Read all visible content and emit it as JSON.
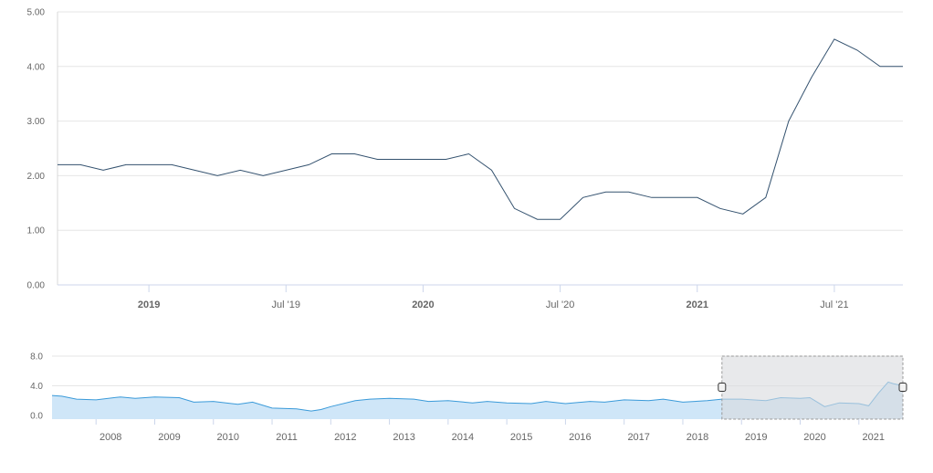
{
  "chart_data": [
    {
      "type": "line",
      "ylim": [
        0,
        5
      ],
      "y_ticks": [
        "0.00",
        "1.00",
        "2.00",
        "3.00",
        "4.00",
        "5.00"
      ],
      "x_range": [
        "2018-09",
        "2021-10"
      ],
      "x_ticks": [
        {
          "label": "2019",
          "x": "2019-01",
          "bold": true
        },
        {
          "label": "Jul '19",
          "x": "2019-07",
          "bold": false
        },
        {
          "label": "2020",
          "x": "2020-01",
          "bold": true
        },
        {
          "label": "Jul '20",
          "x": "2020-07",
          "bold": false
        },
        {
          "label": "2021",
          "x": "2021-01",
          "bold": true
        },
        {
          "label": "Jul '21",
          "x": "2021-07",
          "bold": false
        }
      ],
      "grid": true,
      "line_color": "#34526f",
      "points": [
        [
          "2018-09",
          2.2
        ],
        [
          "2018-10",
          2.2
        ],
        [
          "2018-11",
          2.1
        ],
        [
          "2018-12",
          2.2
        ],
        [
          "2019-01",
          2.2
        ],
        [
          "2019-02",
          2.2
        ],
        [
          "2019-03",
          2.1
        ],
        [
          "2019-04",
          2.0
        ],
        [
          "2019-05",
          2.1
        ],
        [
          "2019-06",
          2.0
        ],
        [
          "2019-07",
          2.1
        ],
        [
          "2019-08",
          2.2
        ],
        [
          "2019-09",
          2.4
        ],
        [
          "2019-10",
          2.4
        ],
        [
          "2019-11",
          2.3
        ],
        [
          "2019-12",
          2.3
        ],
        [
          "2020-01",
          2.3
        ],
        [
          "2020-02",
          2.3
        ],
        [
          "2020-03",
          2.4
        ],
        [
          "2020-04",
          2.1
        ],
        [
          "2020-05",
          1.4
        ],
        [
          "2020-06",
          1.2
        ],
        [
          "2020-07",
          1.2
        ],
        [
          "2020-08",
          1.6
        ],
        [
          "2020-09",
          1.7
        ],
        [
          "2020-10",
          1.7
        ],
        [
          "2020-11",
          1.6
        ],
        [
          "2020-12",
          1.6
        ],
        [
          "2021-01",
          1.6
        ],
        [
          "2021-02",
          1.4
        ],
        [
          "2021-03",
          1.3
        ],
        [
          "2021-04",
          1.6
        ],
        [
          "2021-05",
          3.0
        ],
        [
          "2021-06",
          3.8
        ],
        [
          "2021-07",
          4.5
        ],
        [
          "2021-08",
          4.3
        ],
        [
          "2021-09",
          4.0
        ],
        [
          "2021-10",
          4.0
        ]
      ]
    },
    {
      "type": "area",
      "role": "navigator",
      "ylim": [
        0,
        8
      ],
      "y_ticks": [
        "0.0",
        "4.0",
        "8.0"
      ],
      "x_range": [
        "2007-04",
        "2021-10"
      ],
      "x_ticks": [
        "2008",
        "2009",
        "2010",
        "2011",
        "2012",
        "2013",
        "2014",
        "2015",
        "2016",
        "2017",
        "2018",
        "2019",
        "2020",
        "2021"
      ],
      "selected_range": [
        "2018-09",
        "2021-10"
      ],
      "line_color": "#3a9ad9",
      "fill_color": "#cfe6f8",
      "points": [
        [
          "2007-04",
          2.7
        ],
        [
          "2007-06",
          2.6
        ],
        [
          "2007-09",
          2.2
        ],
        [
          "2008-01",
          2.1
        ],
        [
          "2008-06",
          2.5
        ],
        [
          "2008-09",
          2.3
        ],
        [
          "2009-01",
          2.5
        ],
        [
          "2009-06",
          2.4
        ],
        [
          "2009-09",
          1.8
        ],
        [
          "2010-01",
          1.9
        ],
        [
          "2010-06",
          1.5
        ],
        [
          "2010-09",
          1.8
        ],
        [
          "2011-01",
          1.0
        ],
        [
          "2011-06",
          0.9
        ],
        [
          "2011-09",
          0.6
        ],
        [
          "2011-11",
          0.8
        ],
        [
          "2012-01",
          1.2
        ],
        [
          "2012-06",
          2.0
        ],
        [
          "2012-09",
          2.2
        ],
        [
          "2013-01",
          2.3
        ],
        [
          "2013-06",
          2.2
        ],
        [
          "2013-09",
          1.9
        ],
        [
          "2014-01",
          2.0
        ],
        [
          "2014-06",
          1.7
        ],
        [
          "2014-09",
          1.9
        ],
        [
          "2015-01",
          1.7
        ],
        [
          "2015-06",
          1.6
        ],
        [
          "2015-09",
          1.9
        ],
        [
          "2016-01",
          1.6
        ],
        [
          "2016-06",
          1.9
        ],
        [
          "2016-09",
          1.8
        ],
        [
          "2017-01",
          2.1
        ],
        [
          "2017-06",
          2.0
        ],
        [
          "2017-09",
          2.2
        ],
        [
          "2018-01",
          1.8
        ],
        [
          "2018-06",
          2.0
        ],
        [
          "2018-09",
          2.2
        ],
        [
          "2019-01",
          2.2
        ],
        [
          "2019-06",
          2.0
        ],
        [
          "2019-09",
          2.4
        ],
        [
          "2020-01",
          2.3
        ],
        [
          "2020-03",
          2.4
        ],
        [
          "2020-06",
          1.2
        ],
        [
          "2020-09",
          1.7
        ],
        [
          "2021-01",
          1.6
        ],
        [
          "2021-03",
          1.3
        ],
        [
          "2021-05",
          3.0
        ],
        [
          "2021-07",
          4.5
        ],
        [
          "2021-08",
          4.3
        ],
        [
          "2021-10",
          4.0
        ]
      ]
    }
  ]
}
